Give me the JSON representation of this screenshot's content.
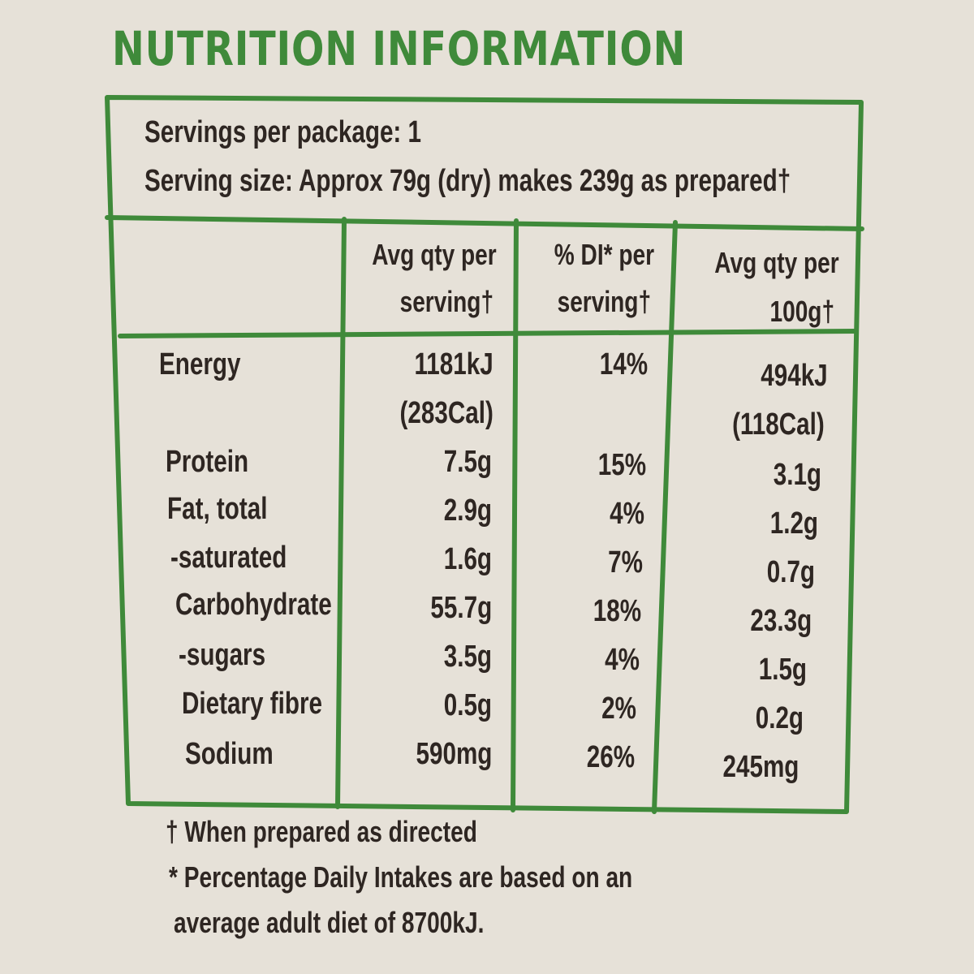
{
  "title": "NUTRITION INFORMATION",
  "servings": {
    "per_package": "Servings per package: 1",
    "size": "Serving size: Approx 79g (dry) makes 239g as prepared†"
  },
  "columns": {
    "per_serving": [
      "Avg qty per",
      "serving†"
    ],
    "di_per_serving": [
      "% DI* per",
      "serving†"
    ],
    "per_100g": [
      "Avg qty per",
      "100g†"
    ]
  },
  "rows": [
    {
      "name": "Energy",
      "per_serving": "1181kJ",
      "per_serving_sub": "(283Cal)",
      "di": "14%",
      "per_100g": "494kJ",
      "per_100g_sub": "(118Cal)"
    },
    {
      "name": "Protein",
      "per_serving": "7.5g",
      "di": "15%",
      "per_100g": "3.1g"
    },
    {
      "name": "Fat, total",
      "per_serving": "2.9g",
      "di": "4%",
      "per_100g": "1.2g"
    },
    {
      "name": "-saturated",
      "per_serving": "1.6g",
      "di": "7%",
      "per_100g": "0.7g"
    },
    {
      "name": "Carbohydrate",
      "per_serving": "55.7g",
      "di": "18%",
      "per_100g": "23.3g"
    },
    {
      "name": "-sugars",
      "per_serving": "3.5g",
      "di": "4%",
      "per_100g": "1.5g"
    },
    {
      "name": "Dietary fibre",
      "per_serving": "0.5g",
      "di": "2%",
      "per_100g": "0.2g"
    },
    {
      "name": "Sodium",
      "per_serving": "590mg",
      "di": "26%",
      "per_100g": "245mg"
    }
  ],
  "footnotes": {
    "dagger": "† When prepared as directed",
    "asterisk_1": "* Percentage Daily Intakes are based on an",
    "asterisk_2": "average adult diet of 8700kJ."
  },
  "colors": {
    "background": "#e6e1d8",
    "accent_green": "#3f8a3a",
    "text": "#2e2622"
  }
}
